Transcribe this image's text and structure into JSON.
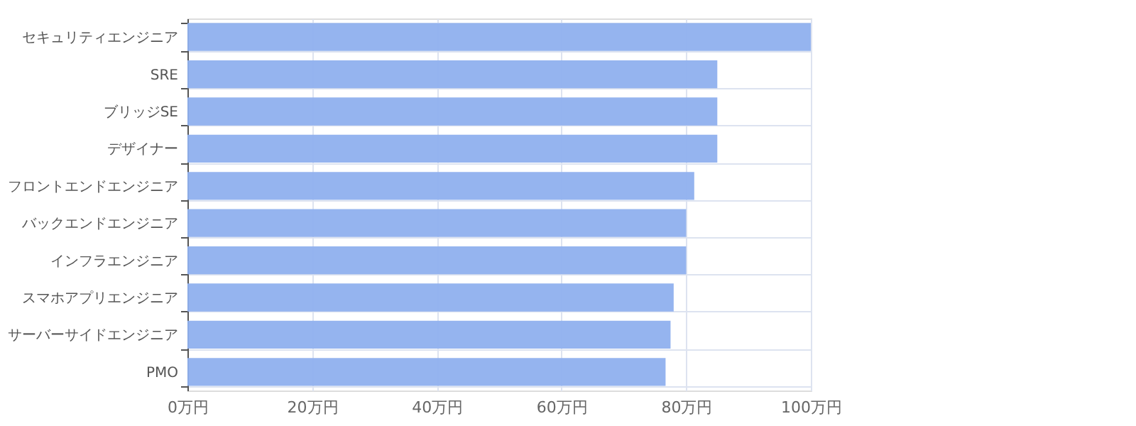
{
  "chart_data": {
    "type": "bar",
    "orientation": "horizontal",
    "categories": [
      "セキュリティエンジニア",
      "SRE",
      "ブリッジSE",
      "デザイナー",
      "フロントエンドエンジニア",
      "バックエンドエンジニア",
      "インフラエンジニア",
      "スマホアプリエンジニア",
      "サーバーサイドエンジニア",
      "PMO"
    ],
    "values": [
      100,
      85,
      85,
      85,
      81.3,
      80,
      80,
      78,
      77.5,
      76.7
    ],
    "color": "#8fb0ee",
    "xlim": [
      0,
      100
    ],
    "xticks": [
      {
        "value": 0,
        "label": "0万円"
      },
      {
        "value": 20,
        "label": "20万円"
      },
      {
        "value": 40,
        "label": "40万円"
      },
      {
        "value": 60,
        "label": "60万円"
      },
      {
        "value": 80,
        "label": "80万円"
      },
      {
        "value": 100,
        "label": "100万円"
      }
    ],
    "grid": true
  }
}
